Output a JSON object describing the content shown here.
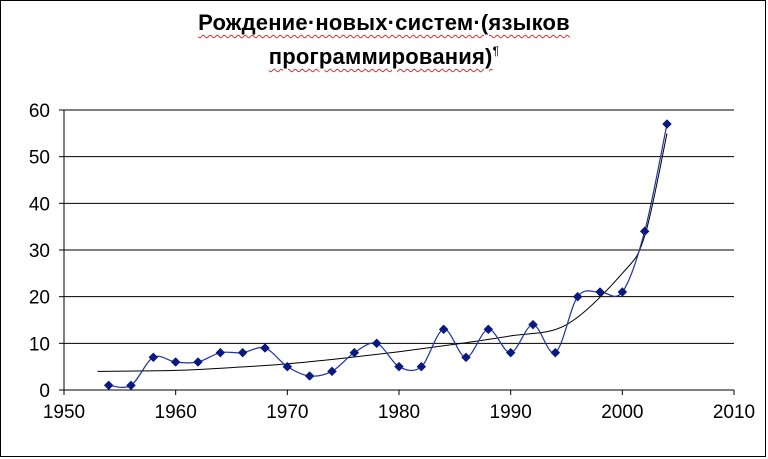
{
  "chart_data": {
    "type": "line",
    "title_line1": "Рождение·новых·систем·(языков",
    "title_line2": "программирования)",
    "title_line2_mark": "¶",
    "xlim": [
      1950,
      2010
    ],
    "ylim": [
      0,
      60
    ],
    "x_ticks": [
      "1950",
      "1960",
      "1970",
      "1980",
      "1990",
      "2000",
      "2010"
    ],
    "y_ticks": [
      "0",
      "10",
      "20",
      "30",
      "40",
      "50",
      "60"
    ],
    "grid": "horizontal",
    "legend": "none",
    "series": [
      {
        "x": [
          1954,
          1956,
          1958,
          1960,
          1962,
          1964,
          1966,
          1968,
          1970,
          1972,
          1974,
          1976,
          1978,
          1980,
          1982,
          1984,
          1986,
          1988,
          1990,
          1992,
          1994,
          1996,
          1998,
          2000,
          2002,
          2004
        ],
        "y": [
          1,
          1,
          7,
          6,
          6,
          8,
          8,
          9,
          5,
          3,
          4,
          8,
          10,
          5,
          5,
          13,
          7,
          13,
          8,
          14,
          8,
          20,
          21,
          21,
          34,
          57
        ],
        "color": "#2233a0",
        "marker": "diamond",
        "marker_color": "#0a1a80"
      }
    ],
    "trendline": {
      "type": "exponential",
      "color": "#000000",
      "x": [
        1953,
        1960,
        1965,
        1970,
        1975,
        1980,
        1985,
        1990,
        1995,
        2000,
        2002,
        2004
      ],
      "y": [
        4,
        4.2,
        4.8,
        5.6,
        6.8,
        8.2,
        9.8,
        11.6,
        14,
        25,
        33,
        55
      ]
    }
  }
}
